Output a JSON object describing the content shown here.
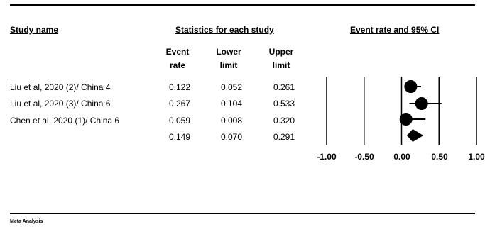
{
  "headers": {
    "study": "Study name",
    "stats": "Statistics for each study",
    "plot": "Event rate and 95% CI",
    "event_rate": [
      "Event",
      "rate"
    ],
    "lower": [
      "Lower",
      "limit"
    ],
    "upper": [
      "Upper",
      "limit"
    ]
  },
  "rows": [
    {
      "name": "Liu et al, 2020 (2)/ China 4",
      "event": "0.122",
      "lower": "0.052",
      "upper": "0.261"
    },
    {
      "name": "Liu et al, 2020 (3)/ China 6",
      "event": "0.267",
      "lower": "0.104",
      "upper": "0.533"
    },
    {
      "name": "Chen et al, 2020 (1)/ China 6",
      "event": "0.059",
      "lower": "0.008",
      "upper": "0.320"
    },
    {
      "name": "",
      "event": "0.149",
      "lower": "0.070",
      "upper": "0.291"
    }
  ],
  "footer": "Meta Analysis",
  "chart_data": {
    "type": "forest",
    "xlim": [
      -1.0,
      1.0
    ],
    "ticks": [
      "-1.00",
      "-0.50",
      "0.00",
      "0.50",
      "1.00"
    ],
    "tick_values": [
      -1.0,
      -0.5,
      0.0,
      0.5,
      1.0
    ],
    "studies": [
      {
        "name": "Liu et al, 2020 (2)/ China 4",
        "estimate": 0.122,
        "lower": 0.052,
        "upper": 0.261
      },
      {
        "name": "Liu et al, 2020 (3)/ China 6",
        "estimate": 0.267,
        "lower": 0.104,
        "upper": 0.533
      },
      {
        "name": "Chen et al, 2020 (1)/ China 6",
        "estimate": 0.059,
        "lower": 0.008,
        "upper": 0.32
      }
    ],
    "summary": {
      "estimate": 0.149,
      "lower": 0.07,
      "upper": 0.291
    }
  }
}
